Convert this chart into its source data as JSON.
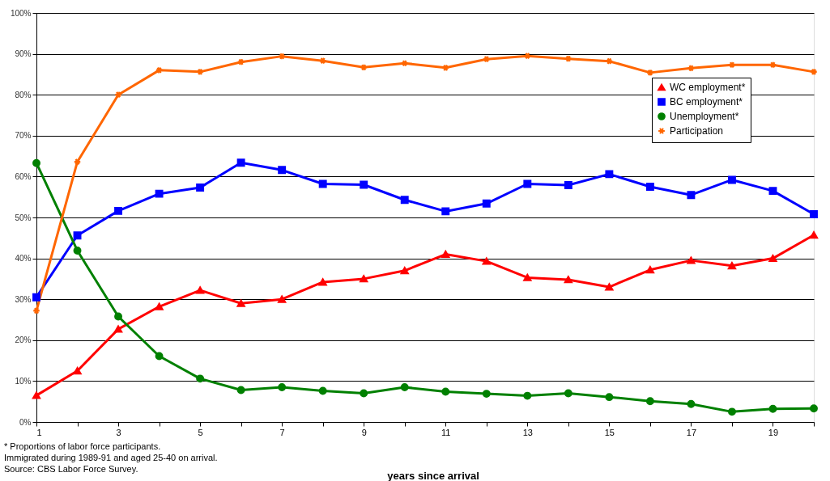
{
  "chart_data": {
    "type": "line",
    "xlabel": "years since arrival",
    "x": [
      1,
      2,
      3,
      4,
      5,
      6,
      7,
      8,
      9,
      10,
      11,
      12,
      13,
      14,
      15,
      16,
      17,
      18,
      19,
      20
    ],
    "series": [
      {
        "name": "WC employment*",
        "color": "#ff0000",
        "marker": "triangle",
        "values": [
          6.5,
          12.5,
          22.7,
          28.2,
          32.2,
          29.0,
          30.0,
          34.2,
          35.0,
          37.0,
          41.0,
          39.3,
          35.3,
          34.8,
          33.0,
          37.2,
          39.5,
          38.2,
          40.0,
          45.7
        ]
      },
      {
        "name": "BC employment*",
        "color": "#0000ff",
        "marker": "square",
        "values": [
          30.5,
          45.6,
          51.6,
          55.8,
          57.3,
          63.4,
          61.6,
          58.2,
          58.0,
          54.3,
          51.5,
          53.4,
          58.2,
          57.9,
          60.6,
          57.5,
          55.5,
          59.2,
          56.5,
          50.8
        ]
      },
      {
        "name": "Unemployment*",
        "color": "#008000",
        "marker": "circle",
        "values": [
          63.3,
          41.9,
          25.8,
          16.1,
          10.6,
          7.8,
          8.5,
          7.6,
          7.0,
          8.5,
          7.4,
          6.9,
          6.4,
          7.0,
          6.1,
          5.1,
          4.4,
          2.5,
          3.2,
          3.3
        ]
      },
      {
        "name": "Participation",
        "color": "#ff6600",
        "marker": "cross",
        "values": [
          27.2,
          63.6,
          80.0,
          86.0,
          85.6,
          88.0,
          89.4,
          88.3,
          86.7,
          87.7,
          86.6,
          88.7,
          89.5,
          88.8,
          88.2,
          85.4,
          86.5,
          87.3,
          87.3,
          85.6
        ]
      }
    ],
    "xlim": [
      1,
      20
    ],
    "xticks": [
      1,
      {
        "value": 2,
        "label": null
      },
      3,
      {
        "value": 4,
        "label": null
      },
      5,
      {
        "value": 6,
        "label": null
      },
      7,
      {
        "value": 8,
        "label": null
      },
      9,
      {
        "value": 10,
        "label": null
      },
      11,
      {
        "value": 12,
        "label": null
      },
      13,
      {
        "value": 14,
        "label": null
      },
      15,
      {
        "value": 16,
        "label": null
      },
      17,
      {
        "value": 18,
        "label": null
      },
      19,
      {
        "value": 20,
        "label": null
      }
    ],
    "ylim": [
      0,
      100
    ],
    "yticks": [
      {
        "value": 0,
        "label": "0%"
      },
      {
        "value": 10,
        "label": "10%"
      },
      {
        "value": 20,
        "label": "20%"
      },
      {
        "value": 30,
        "label": "30%"
      },
      {
        "value": 40,
        "label": "40%"
      },
      {
        "value": 50,
        "label": "50%"
      },
      {
        "value": 60,
        "label": "60%"
      },
      {
        "value": 70,
        "label": "70%"
      },
      {
        "value": 80,
        "label": "80%"
      },
      {
        "value": 90,
        "label": "90%"
      },
      {
        "value": 100,
        "label": "100%"
      }
    ],
    "grid": "y",
    "legend": "top right",
    "line_style": "solid",
    "annotations": [
      "* Proportions of labor force participants.",
      "Immigrated during 1989-91 and aged 25-40 on arrival.",
      "Source: CBS Labor Force Survey."
    ]
  }
}
